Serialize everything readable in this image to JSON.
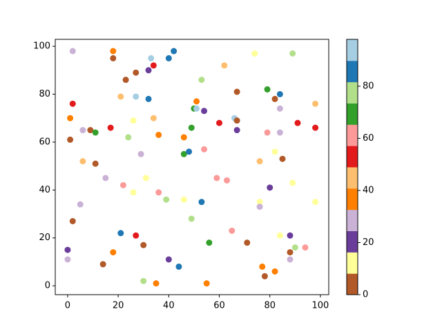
{
  "chart_data": {
    "type": "scatter",
    "x": [
      2,
      18,
      18,
      33,
      42,
      40,
      34,
      32,
      27,
      23,
      53,
      62,
      74,
      89,
      79,
      84,
      82,
      67,
      98,
      2,
      21,
      27,
      32,
      51,
      50,
      51,
      54,
      84,
      66,
      67,
      60,
      67,
      79,
      84,
      91,
      98,
      1,
      1,
      6,
      9,
      11,
      17,
      26,
      34,
      24,
      36,
      46,
      49,
      46,
      48,
      54,
      29,
      6,
      11,
      15,
      22,
      26,
      31,
      36,
      39,
      46,
      53,
      59,
      63,
      82,
      85,
      76,
      80,
      89,
      76,
      76,
      98,
      5,
      2,
      49,
      65,
      21,
      27,
      30,
      56,
      71,
      84,
      88,
      90,
      94,
      88,
      88,
      0,
      0,
      18,
      14,
      40,
      44,
      77,
      82,
      78,
      30,
      35,
      55
    ],
    "y": [
      98,
      98,
      95,
      95,
      98,
      95,
      92,
      90,
      89,
      86,
      86,
      92,
      97,
      97,
      82,
      80,
      78,
      81,
      76,
      76,
      79,
      79,
      78,
      77,
      74,
      74,
      73,
      74,
      70,
      69,
      68,
      65,
      64,
      64,
      68,
      66,
      70,
      61,
      65,
      65,
      64,
      66,
      69,
      70,
      62,
      63,
      62,
      66,
      55,
      56,
      57,
      55,
      52,
      51,
      45,
      42,
      39,
      45,
      39,
      36,
      36,
      35,
      45,
      44,
      56,
      53,
      52,
      41,
      43,
      35,
      33,
      35,
      34,
      27,
      28,
      23,
      22,
      21,
      17,
      18,
      18,
      21,
      21,
      16,
      16,
      14,
      11,
      15,
      11,
      14,
      9,
      11,
      8,
      8,
      6,
      4,
      2,
      1,
      1
    ],
    "c": [
      29,
      37,
      4,
      94,
      86,
      86,
      53,
      20,
      4,
      4,
      78,
      45,
      12,
      78,
      70,
      86,
      4,
      4,
      45,
      53,
      45,
      94,
      86,
      37,
      70,
      94,
      20,
      29,
      94,
      4,
      53,
      20,
      61,
      29,
      53,
      53,
      37,
      4,
      29,
      4,
      70,
      53,
      12,
      45,
      78,
      37,
      37,
      70,
      70,
      86,
      61,
      29,
      45,
      4,
      29,
      61,
      12,
      12,
      61,
      78,
      12,
      86,
      61,
      61,
      12,
      4,
      45,
      20,
      12,
      12,
      29,
      12,
      29,
      4,
      78,
      61,
      86,
      53,
      4,
      70,
      4,
      12,
      20,
      78,
      61,
      4,
      29,
      20,
      29,
      37,
      4,
      20,
      86,
      37,
      37,
      4,
      78,
      37,
      37
    ],
    "cmap_colors": [
      "#b15928",
      "#ffff99",
      "#6a3d9a",
      "#cab2d6",
      "#ff7f00",
      "#fdbf6f",
      "#e31a1c",
      "#fb9a99",
      "#33a02c",
      "#b2df8a",
      "#1f78b4",
      "#a6cee3"
    ],
    "clim": [
      0,
      98
    ],
    "cticks": [
      0,
      20,
      40,
      60,
      80
    ],
    "xlim": [
      -4.9,
      103.3
    ],
    "xticks": [
      0,
      20,
      40,
      60,
      80,
      100
    ],
    "ylim": [
      -3.7,
      102.9
    ],
    "yticks": [
      0,
      20,
      40,
      60,
      80,
      100
    ]
  }
}
